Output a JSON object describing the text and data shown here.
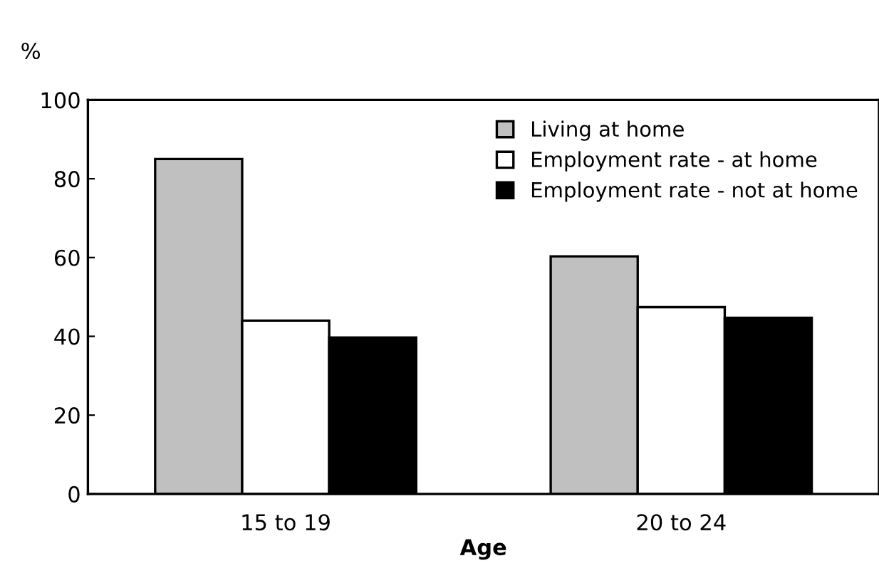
{
  "chart_data": {
    "type": "bar",
    "ylabel": "%",
    "xlabel": "Age",
    "categories": [
      "15 to 19",
      "20 to 24"
    ],
    "series": [
      {
        "name": "Living at home",
        "color": "#c0c0c0",
        "values": [
          85,
          60.3
        ]
      },
      {
        "name": "Employment rate - at home",
        "color": "#ffffff",
        "values": [
          44,
          47.4
        ]
      },
      {
        "name": "Employment rate - not at home",
        "color": "#000000",
        "values": [
          39.7,
          44.7
        ]
      }
    ],
    "ylim": [
      0,
      100
    ],
    "yticks": [
      0,
      20,
      40,
      60,
      80,
      100
    ],
    "grid": false,
    "legend": "top right"
  }
}
